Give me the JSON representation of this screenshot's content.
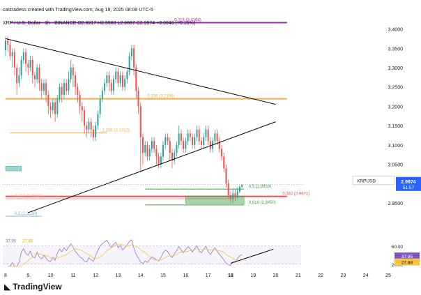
{
  "header": {
    "credit": "castradess created with TradingView.com, Aug 18, 2025 08:08 UTC-5",
    "symbol_line": "XRP / U.S. Dollar · 1h · BINANCE  O2.9917  H2.9980  L2.9887  C2.9974  +0.0046 (+0.15%)"
  },
  "branding": {
    "logo_text": "TradingView"
  },
  "colors": {
    "up": "#26a69a",
    "down": "#ef5350",
    "fib_orange": "#f5b041",
    "fib_purple": "#9c27b0",
    "fib_red": "#ef9a9a",
    "fib_green": "#43a047",
    "trend": "#000000",
    "rsi": "#9575cd",
    "rsi_ma": "#f6c343",
    "price_tag": "#2962ff",
    "rsi_tag": "#7e57c2"
  },
  "chart_data": {
    "type": "candlestick",
    "symbol": "XRP / U.S. Dollar",
    "interval": "1h",
    "exchange": "BINANCE",
    "ohlc_last": {
      "open": 2.9917,
      "high": 2.998,
      "low": 2.9887,
      "close": 2.9974,
      "change": 0.0046,
      "change_pct": 0.15
    },
    "last_price": "2.9974",
    "countdown": "51:57",
    "y_ticks": [
      "3.4000",
      "3.3500",
      "3.3000",
      "3.2500",
      "3.2000",
      "3.1500",
      "3.1000",
      "3.0500",
      "2.9500"
    ],
    "ylim": [
      2.905,
      3.41
    ],
    "x_ticks": [
      "8",
      "9",
      "10",
      "11",
      "12",
      "13",
      "14",
      "15",
      "16",
      "17",
      "18",
      "19",
      "20",
      "21",
      "22",
      "23",
      "24",
      "25"
    ],
    "xlim": [
      8.0,
      25.0
    ],
    "fib_levels": [
      {
        "label": "0.118 (3.4164)",
        "value": 3.4164,
        "color": "#9c27b0"
      },
      {
        "label": "0.236 (3.2196)",
        "value": 3.2196,
        "color": "#f5b041"
      },
      {
        "label": "1.236 (3.1312)",
        "value": 3.1312,
        "color": "#f5b041"
      },
      {
        "label": "0.5 (2.9859)",
        "value": 2.9859,
        "color": "#43a047"
      },
      {
        "label": "0.382 (2.9671)",
        "value": 2.9671,
        "color": "#ef5350"
      },
      {
        "label": "0.382 (2.9608)",
        "value": 2.9608,
        "color": "#ef9a9a"
      },
      {
        "label": "0.618 (2.9450)",
        "value": 2.945,
        "color": "#43a047"
      },
      {
        "label": "0.5 (2.9158)",
        "value": 2.9158,
        "color": "#7fb3d5"
      }
    ],
    "trendlines": [
      {
        "name": "descending",
        "from": [
          8.0,
          3.375
        ],
        "to": [
          20.0,
          3.205
        ]
      },
      {
        "name": "ascending",
        "from": [
          9.0,
          2.925
        ],
        "to": [
          20.0,
          3.16
        ]
      }
    ],
    "zones": [
      {
        "color": "#26a69a",
        "x": [
          8.0,
          8.7
        ],
        "y": [
          3.033,
          3.045
        ]
      },
      {
        "color": "#43a047",
        "x": [
          16.0,
          18.6
        ],
        "y": [
          2.948,
          2.968
        ]
      }
    ],
    "candles": [
      [
        8.0,
        3.345,
        3.37,
        3.38,
        3.33
      ],
      [
        8.1,
        3.37,
        3.36,
        3.38,
        3.34
      ],
      [
        8.2,
        3.36,
        3.33,
        3.37,
        3.32
      ],
      [
        8.3,
        3.33,
        3.34,
        3.35,
        3.3
      ],
      [
        8.4,
        3.34,
        3.3,
        3.35,
        3.28
      ],
      [
        8.5,
        3.3,
        3.26,
        3.31,
        3.23
      ],
      [
        8.6,
        3.26,
        3.28,
        3.3,
        3.25
      ],
      [
        8.7,
        3.28,
        3.32,
        3.33,
        3.27
      ],
      [
        8.8,
        3.32,
        3.34,
        3.35,
        3.31
      ],
      [
        8.9,
        3.34,
        3.31,
        3.35,
        3.29
      ],
      [
        9.0,
        3.31,
        3.3,
        3.32,
        3.28
      ],
      [
        9.1,
        3.3,
        3.32,
        3.33,
        3.29
      ],
      [
        9.2,
        3.32,
        3.28,
        3.33,
        3.26
      ],
      [
        9.3,
        3.28,
        3.27,
        3.29,
        3.25
      ],
      [
        9.4,
        3.27,
        3.3,
        3.31,
        3.26
      ],
      [
        9.5,
        3.3,
        3.26,
        3.31,
        3.24
      ],
      [
        9.6,
        3.26,
        3.24,
        3.27,
        3.22
      ],
      [
        9.7,
        3.24,
        3.26,
        3.27,
        3.23
      ],
      [
        9.8,
        3.26,
        3.23,
        3.27,
        3.21
      ],
      [
        9.9,
        3.23,
        3.2,
        3.24,
        3.18
      ],
      [
        10.0,
        3.2,
        3.19,
        3.21,
        3.17
      ],
      [
        10.1,
        3.19,
        3.21,
        3.22,
        3.18
      ],
      [
        10.2,
        3.21,
        3.18,
        3.22,
        3.16
      ],
      [
        10.3,
        3.18,
        3.22,
        3.23,
        3.17
      ],
      [
        10.4,
        3.22,
        3.25,
        3.26,
        3.21
      ],
      [
        10.5,
        3.25,
        3.23,
        3.26,
        3.21
      ],
      [
        10.6,
        3.23,
        3.26,
        3.27,
        3.22
      ],
      [
        10.7,
        3.26,
        3.24,
        3.27,
        3.23
      ],
      [
        10.8,
        3.24,
        3.27,
        3.29,
        3.23
      ],
      [
        10.9,
        3.27,
        3.3,
        3.32,
        3.26
      ],
      [
        11.0,
        3.3,
        3.28,
        3.31,
        3.25
      ],
      [
        11.1,
        3.28,
        3.25,
        3.29,
        3.23
      ],
      [
        11.2,
        3.25,
        3.23,
        3.26,
        3.21
      ],
      [
        11.3,
        3.23,
        3.2,
        3.24,
        3.18
      ],
      [
        11.4,
        3.2,
        3.19,
        3.21,
        3.16
      ],
      [
        11.5,
        3.19,
        3.15,
        3.2,
        3.13
      ],
      [
        11.6,
        3.15,
        3.14,
        3.16,
        3.12
      ],
      [
        11.7,
        3.14,
        3.16,
        3.17,
        3.13
      ],
      [
        11.8,
        3.16,
        3.14,
        3.17,
        3.12
      ],
      [
        11.9,
        3.14,
        3.12,
        3.15,
        3.11
      ],
      [
        12.0,
        3.12,
        3.15,
        3.16,
        3.11
      ],
      [
        12.1,
        3.15,
        3.18,
        3.19,
        3.14
      ],
      [
        12.2,
        3.18,
        3.22,
        3.23,
        3.17
      ],
      [
        12.3,
        3.22,
        3.24,
        3.25,
        3.21
      ],
      [
        12.4,
        3.24,
        3.26,
        3.27,
        3.23
      ],
      [
        12.5,
        3.26,
        3.28,
        3.29,
        3.25
      ],
      [
        12.6,
        3.28,
        3.26,
        3.29,
        3.24
      ],
      [
        12.7,
        3.26,
        3.24,
        3.27,
        3.23
      ],
      [
        12.8,
        3.24,
        3.27,
        3.28,
        3.23
      ],
      [
        12.9,
        3.27,
        3.29,
        3.3,
        3.26
      ],
      [
        13.0,
        3.29,
        3.26,
        3.3,
        3.25
      ],
      [
        13.1,
        3.26,
        3.28,
        3.29,
        3.25
      ],
      [
        13.2,
        3.28,
        3.25,
        3.29,
        3.24
      ],
      [
        13.3,
        3.25,
        3.27,
        3.28,
        3.24
      ],
      [
        13.4,
        3.27,
        3.29,
        3.3,
        3.26
      ],
      [
        13.5,
        3.29,
        3.33,
        3.34,
        3.28
      ],
      [
        13.6,
        3.33,
        3.35,
        3.36,
        3.32
      ],
      [
        13.7,
        3.35,
        3.3,
        3.36,
        3.28
      ],
      [
        13.8,
        3.3,
        3.24,
        3.31,
        3.22
      ],
      [
        13.9,
        3.24,
        3.2,
        3.25,
        3.18
      ],
      [
        14.0,
        3.2,
        3.12,
        3.21,
        3.03
      ],
      [
        14.1,
        3.12,
        3.08,
        3.13,
        3.05
      ],
      [
        14.2,
        3.08,
        3.1,
        3.11,
        3.07
      ],
      [
        14.3,
        3.1,
        3.07,
        3.11,
        3.06
      ],
      [
        14.4,
        3.07,
        3.09,
        3.1,
        3.06
      ],
      [
        14.5,
        3.09,
        3.11,
        3.12,
        3.08
      ],
      [
        14.6,
        3.11,
        3.09,
        3.12,
        3.08
      ],
      [
        14.7,
        3.09,
        3.07,
        3.1,
        3.05
      ],
      [
        14.8,
        3.07,
        3.05,
        3.08,
        3.04
      ],
      [
        14.9,
        3.05,
        3.07,
        3.08,
        3.04
      ],
      [
        15.0,
        3.07,
        3.1,
        3.11,
        3.06
      ],
      [
        15.1,
        3.1,
        3.12,
        3.13,
        3.09
      ],
      [
        15.2,
        3.12,
        3.11,
        3.13,
        3.1
      ],
      [
        15.3,
        3.11,
        3.08,
        3.12,
        3.06
      ],
      [
        15.4,
        3.08,
        3.06,
        3.09,
        3.04
      ],
      [
        15.5,
        3.06,
        3.08,
        3.09,
        3.05
      ],
      [
        15.6,
        3.08,
        3.1,
        3.11,
        3.07
      ],
      [
        15.7,
        3.1,
        3.13,
        3.15,
        3.09
      ],
      [
        15.8,
        3.13,
        3.11,
        3.14,
        3.1
      ],
      [
        15.9,
        3.11,
        3.09,
        3.12,
        3.08
      ],
      [
        16.0,
        3.09,
        3.11,
        3.12,
        3.08
      ],
      [
        16.1,
        3.11,
        3.13,
        3.14,
        3.1
      ],
      [
        16.2,
        3.13,
        3.12,
        3.14,
        3.11
      ],
      [
        16.3,
        3.12,
        3.1,
        3.13,
        3.09
      ],
      [
        16.4,
        3.1,
        3.12,
        3.13,
        3.09
      ],
      [
        16.5,
        3.12,
        3.14,
        3.15,
        3.11
      ],
      [
        16.6,
        3.14,
        3.11,
        3.15,
        3.1
      ],
      [
        16.7,
        3.11,
        3.1,
        3.12,
        3.09
      ],
      [
        16.8,
        3.1,
        3.12,
        3.13,
        3.09
      ],
      [
        16.9,
        3.12,
        3.14,
        3.15,
        3.11
      ],
      [
        17.0,
        3.14,
        3.11,
        3.15,
        3.1
      ],
      [
        17.1,
        3.11,
        3.09,
        3.12,
        3.08
      ],
      [
        17.2,
        3.09,
        3.11,
        3.12,
        3.08
      ],
      [
        17.3,
        3.11,
        3.13,
        3.14,
        3.1
      ],
      [
        17.4,
        3.13,
        3.11,
        3.14,
        3.1
      ],
      [
        17.5,
        3.11,
        3.09,
        3.12,
        3.08
      ],
      [
        17.6,
        3.09,
        3.07,
        3.1,
        3.06
      ],
      [
        17.7,
        3.07,
        3.04,
        3.08,
        3.03
      ],
      [
        17.8,
        3.04,
        3.0,
        3.05,
        2.99
      ],
      [
        17.9,
        3.0,
        2.97,
        3.01,
        2.96
      ],
      [
        18.0,
        2.97,
        2.96,
        2.98,
        2.95
      ],
      [
        18.1,
        2.96,
        2.975,
        2.985,
        2.95
      ],
      [
        18.2,
        2.975,
        2.965,
        2.985,
        2.955
      ],
      [
        18.3,
        2.965,
        2.98,
        2.99,
        2.96
      ],
      [
        18.4,
        2.98,
        2.992,
        2.995,
        2.975
      ],
      [
        18.5,
        2.9917,
        2.9974,
        2.998,
        2.9887
      ]
    ],
    "rsi": {
      "values_label": [
        "37.95",
        "27.88"
      ],
      "levels": [
        "60.00",
        "20.00"
      ],
      "ylim": [
        15,
        75
      ],
      "trendline": {
        "from": [
          18.0,
          22
        ],
        "to": [
          19.9,
          53
        ]
      }
    }
  },
  "rsi_header": {
    "rsi_value": "37.95",
    "rsi_ma_value": "27.88"
  }
}
